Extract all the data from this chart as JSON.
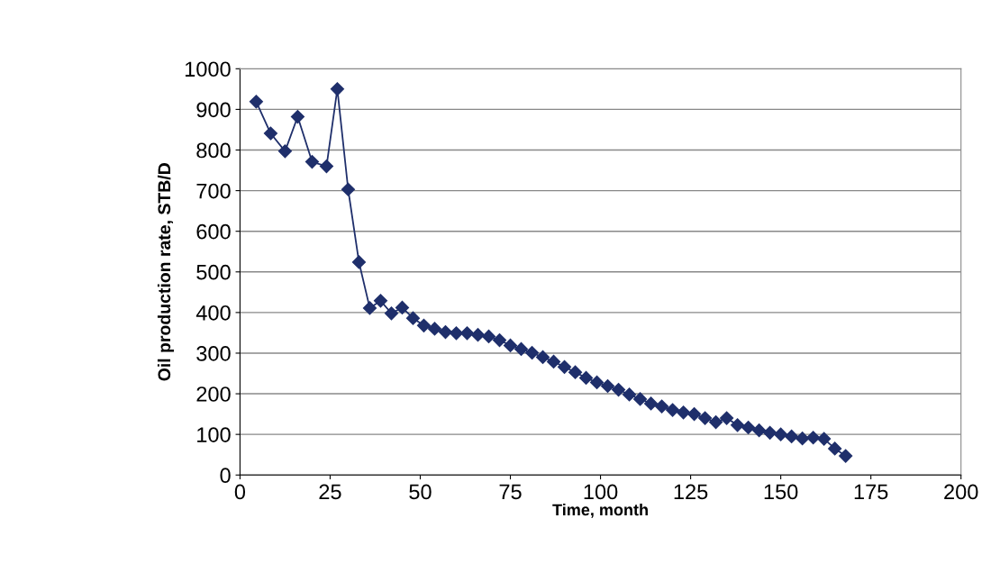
{
  "chart_data": {
    "type": "line",
    "xlabel": "Time, month",
    "ylabel": "Oil production rate, STB/D",
    "x": [
      4.5,
      8.5,
      12.5,
      16,
      20,
      24,
      27,
      30,
      33,
      36,
      39,
      42,
      45,
      48,
      51,
      54,
      57,
      60,
      63,
      66,
      69,
      72,
      75,
      78,
      81,
      84,
      87,
      90,
      93,
      96,
      99,
      102,
      105,
      108,
      111,
      114,
      117,
      120,
      123,
      126,
      129,
      132,
      135,
      138,
      141,
      144,
      147,
      150,
      153,
      156,
      159,
      162,
      165,
      168
    ],
    "series": [
      {
        "color": "#1f2f6b",
        "values": [
          919,
          841,
          797,
          882,
          771,
          760,
          950,
          703,
          524,
          411,
          429,
          398,
          412,
          386,
          368,
          360,
          352,
          349,
          349,
          345,
          341,
          332,
          319,
          310,
          301,
          290,
          279,
          266,
          253,
          239,
          228,
          219,
          210,
          198,
          187,
          176,
          169,
          160,
          154,
          150,
          140,
          130,
          140,
          123,
          117,
          110,
          104,
          100,
          95,
          90,
          92,
          89,
          65,
          47
        ]
      }
    ],
    "xlim": [
      0,
      200
    ],
    "xticks": [
      0,
      25,
      50,
      75,
      100,
      125,
      150,
      175,
      200
    ],
    "ylim": [
      0,
      1000
    ],
    "yticks": [
      0,
      100,
      200,
      300,
      400,
      500,
      600,
      700,
      800,
      900,
      1000
    ],
    "grid": "y",
    "marker": "diamond",
    "line_style": "solid"
  }
}
